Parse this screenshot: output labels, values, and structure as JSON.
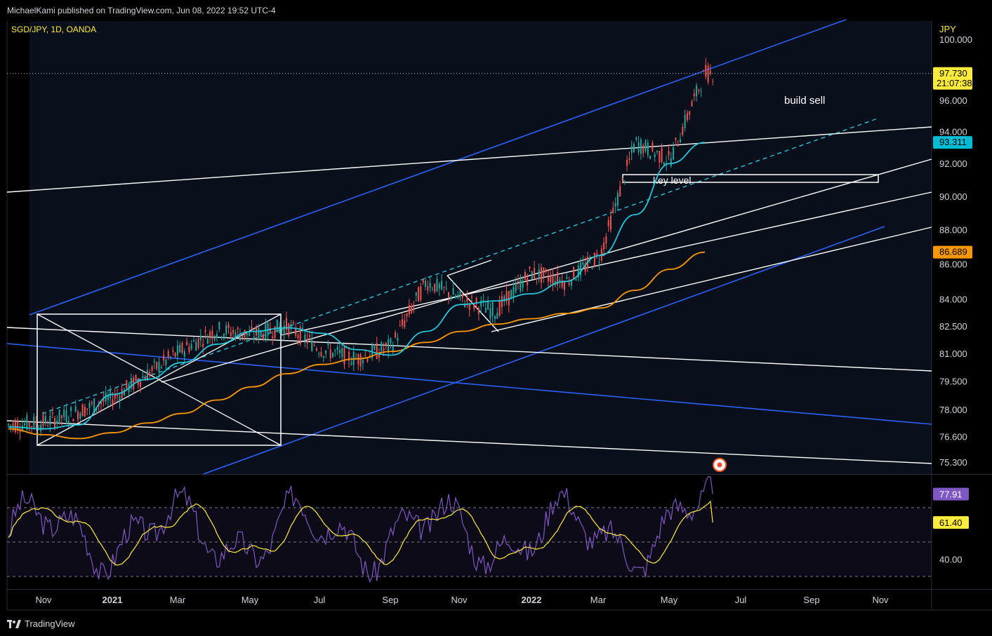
{
  "header": {
    "publisher_line": "MichaelKami published on TradingView.com, Jun 08, 2022 19:52 UTC-4"
  },
  "footer": {
    "brand": "TradingView"
  },
  "chart_data": {
    "type": "line",
    "symbol": "SGD/JPY, 1D, OANDA",
    "currency": "JPY",
    "x_labels": [
      "Nov",
      "2021",
      "Mar",
      "May",
      "Jul",
      "Sep",
      "Nov",
      "2022",
      "Mar",
      "May",
      "Jul",
      "Sep",
      "Nov"
    ],
    "x_labels_bold": [
      "2021",
      "2022"
    ],
    "y_ticks": [
      "100.000",
      "96.000",
      "94.000",
      "92.000",
      "90.000",
      "88.000",
      "86.000",
      "84.000",
      "82.500",
      "81.000",
      "79.500",
      "78.000",
      "76.600",
      "75.300"
    ],
    "ylim": [
      75.3,
      100.0
    ],
    "log_scale": true,
    "price_tags": [
      {
        "value": "97.730",
        "sub": "21:07:38",
        "color": "#ffeb3b",
        "text_color": "#000000"
      },
      {
        "value": "93.311",
        "color": "#00bcd4",
        "text_color": "#000000"
      },
      {
        "value": "86.689",
        "color": "#ff9800",
        "text_color": "#000000"
      }
    ],
    "series": [
      {
        "name": "",
        "color": "#26c6da",
        "approx_points": [
          [
            "Oct 2020",
            77.1
          ],
          [
            "Nov 2020",
            77.0
          ],
          [
            "Dec 2020",
            77.2
          ],
          [
            "Jan 2021",
            78.8
          ],
          [
            "Feb 2021",
            79.6
          ],
          [
            "Mar 2021",
            80.5
          ],
          [
            "Apr 2021",
            81.5
          ],
          [
            "May 2021",
            82.2
          ],
          [
            "Jun 2021",
            82.4
          ],
          [
            "Jul 2021",
            82.1
          ],
          [
            "Aug 2021",
            81.2
          ],
          [
            "Sep 2021",
            80.9
          ],
          [
            "Oct 2021",
            82.2
          ],
          [
            "Nov 2021",
            83.7
          ],
          [
            "Dec 2021",
            83.9
          ],
          [
            "Jan 2022",
            84.3
          ],
          [
            "Feb 2022",
            85.0
          ],
          [
            "Mar 2022",
            86.5
          ],
          [
            "Apr 2022",
            88.9
          ],
          [
            "May 2022",
            92.0
          ],
          [
            "Jun 2022",
            93.311
          ]
        ]
      },
      {
        "name": "",
        "color": "#ff9800",
        "approx_points": [
          [
            "Oct 2020",
            77.0
          ],
          [
            "Nov 2020",
            76.7
          ],
          [
            "Dec 2020",
            76.5
          ],
          [
            "Jan 2021",
            76.8
          ],
          [
            "Feb 2021",
            77.3
          ],
          [
            "Mar 2021",
            77.8
          ],
          [
            "Apr 2021",
            78.5
          ],
          [
            "May 2021",
            79.2
          ],
          [
            "Jun 2021",
            79.9
          ],
          [
            "Jul 2021",
            80.4
          ],
          [
            "Aug 2021",
            80.7
          ],
          [
            "Sep 2021",
            81.1
          ],
          [
            "Oct 2021",
            81.6
          ],
          [
            "Nov 2021",
            82.2
          ],
          [
            "Dec 2021",
            82.6
          ],
          [
            "Jan 2022",
            82.9
          ],
          [
            "Feb 2022",
            83.2
          ],
          [
            "Mar 2022",
            83.5
          ],
          [
            "Apr 2022",
            84.5
          ],
          [
            "May 2022",
            85.7
          ],
          [
            "Jun 2022",
            86.689
          ]
        ]
      },
      {
        "name": "",
        "color": "#26a69a",
        "approx_points": [
          [
            "Oct 2020",
            77.2
          ],
          [
            "Nov 2020",
            77.3
          ],
          [
            "Dec 2020",
            77.9
          ],
          [
            "Jan 2021",
            78.6
          ],
          [
            "Feb 2021",
            79.9
          ],
          [
            "Mar 2021",
            81.2
          ],
          [
            "Apr 2021",
            82.3
          ],
          [
            "May 2021",
            82.0
          ],
          [
            "Jun 2021",
            82.5
          ],
          [
            "Jul 2021",
            81.2
          ],
          [
            "Aug 2021",
            80.7
          ],
          [
            "Sep 2021",
            81.4
          ],
          [
            "Oct 2021",
            85.0
          ],
          [
            "Nov 2021",
            84.0
          ],
          [
            "Dec 2021",
            83.3
          ],
          [
            "Jan 2022",
            85.5
          ],
          [
            "Feb 2022",
            85.0
          ],
          [
            "Mar 2022",
            86.5
          ],
          [
            "Apr 2022",
            93.3
          ],
          [
            "May 2022",
            92.2
          ],
          [
            "Jun 2022",
            97.73
          ]
        ]
      }
    ],
    "annotations": [
      "build sell",
      "key level"
    ],
    "rsi": {
      "ticks": [
        "40.00"
      ],
      "tags": [
        {
          "value": "77.91",
          "color": "#7e57c2",
          "text_color": "#ffffff"
        },
        {
          "value": "61.40",
          "color": "#ffeb3b",
          "text_color": "#000000"
        }
      ],
      "bands": [
        70,
        50,
        30
      ]
    }
  }
}
